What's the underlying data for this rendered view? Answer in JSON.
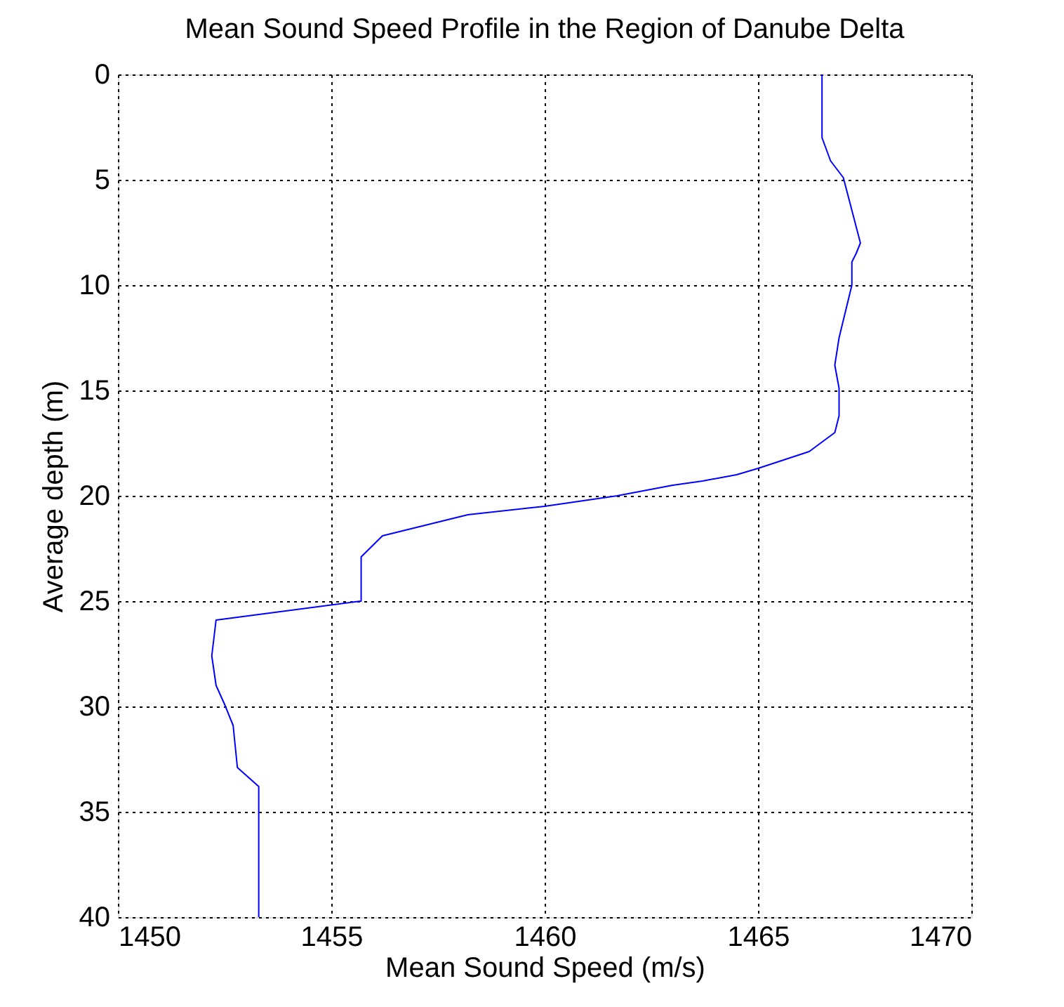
{
  "chart_data": {
    "type": "line",
    "title": "Mean Sound Speed Profile in the Region of Danube Delta",
    "xlabel": "Mean Sound Speed (m/s)",
    "ylabel": "Average depth (m)",
    "x": [
      1466.5,
      1466.5,
      1466.7,
      1467.0,
      1467.4,
      1467.3,
      1467.2,
      1467.2,
      1466.9,
      1466.8,
      1466.9,
      1466.9,
      1466.8,
      1466.2,
      1465.0,
      1464.5,
      1463.7,
      1463.0,
      1461.7,
      1460.0,
      1458.2,
      1456.2,
      1455.7,
      1455.7,
      1452.3,
      1452.2,
      1452.3,
      1452.5,
      1452.7,
      1452.8,
      1453.3,
      1453.3
    ],
    "series": [
      {
        "color": "#0000ff",
        "values": [
          0,
          3,
          4.1,
          4.9,
          8,
          8.5,
          8.9,
          10,
          12.5,
          13.8,
          14.9,
          16.2,
          17,
          17.9,
          18.7,
          19,
          19.3,
          19.5,
          20,
          20.5,
          20.9,
          21.9,
          22.9,
          25,
          25.9,
          27.6,
          29,
          29.9,
          30.9,
          32.9,
          33.8,
          40
        ]
      }
    ],
    "xlim": [
      1450,
      1470
    ],
    "xticks": [
      1450,
      1455,
      1460,
      1465,
      1470
    ],
    "ylim": [
      40,
      0
    ],
    "yticks": [
      0,
      5,
      10,
      15,
      20,
      25,
      30,
      35,
      40
    ],
    "grid": true,
    "line_style": "solid",
    "marker": "none"
  }
}
